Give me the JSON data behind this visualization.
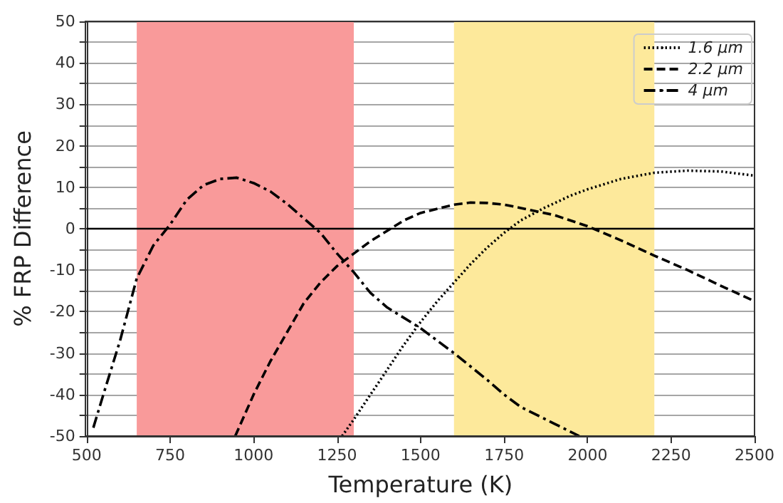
{
  "chart_data": {
    "type": "line",
    "xlabel": "Temperature (K)",
    "ylabel": "% FRP Difference",
    "xlim": [
      500,
      2500
    ],
    "xticks": [
      500,
      750,
      1000,
      1250,
      1500,
      1750,
      2000,
      2250,
      2500
    ],
    "ylim": [
      -50,
      50
    ],
    "yticks": [
      -50,
      {
        "value": -45,
        "label": null
      },
      -40,
      {
        "value": -35,
        "label": null
      },
      -30,
      {
        "value": -25,
        "label": null
      },
      -20,
      {
        "value": -15,
        "label": null
      },
      -10,
      {
        "value": -5,
        "label": null
      },
      0,
      {
        "value": 5,
        "label": null
      },
      10,
      {
        "value": 15,
        "label": null
      },
      20,
      {
        "value": 25,
        "label": null
      },
      30,
      {
        "value": 35,
        "label": null
      },
      40,
      {
        "value": 45,
        "label": null
      },
      50
    ],
    "grid": "y",
    "legend": "top right",
    "marker": "none",
    "bands": [
      {
        "axis": "x",
        "from": 650,
        "to": 1300,
        "color": "#f99a9a"
      },
      {
        "axis": "x",
        "from": 1600,
        "to": 2200,
        "color": "#fde99b"
      }
    ],
    "ref_lines": [
      {
        "axis": "y",
        "value": 0,
        "color": "#000000"
      }
    ],
    "series": [
      {
        "name": "1.6 µm",
        "color": "#000000",
        "line_style": "dotted",
        "x": [
          1265,
          1300,
          1350,
          1400,
          1450,
          1500,
          1550,
          1600,
          1650,
          1700,
          1750,
          1800,
          1870,
          1950,
          2000,
          2100,
          2200,
          2300,
          2400,
          2500
        ],
        "values": [
          -50,
          -46,
          -40,
          -34,
          -28,
          -22.5,
          -17.5,
          -13,
          -8.5,
          -4.5,
          -1,
          2,
          5,
          8,
          9.5,
          12,
          13.5,
          14,
          13.8,
          12.8
        ]
      },
      {
        "name": "2.2 µm",
        "color": "#000000",
        "line_style": "dashed",
        "x": [
          945,
          1000,
          1050,
          1100,
          1150,
          1200,
          1250,
          1300,
          1350,
          1400,
          1450,
          1500,
          1600,
          1650,
          1700,
          1750,
          1800,
          1900,
          2000,
          2100,
          2200,
          2300,
          2400,
          2500
        ],
        "values": [
          -50,
          -40,
          -32,
          -25,
          -18,
          -13,
          -9,
          -6,
          -3,
          -0.5,
          2,
          3.8,
          5.8,
          6.3,
          6.2,
          5.8,
          5,
          3.3,
          0.6,
          -2.8,
          -6.5,
          -10,
          -13.8,
          -17.5
        ]
      },
      {
        "name": "4 µm",
        "color": "#000000",
        "line_style": "dashdot",
        "x": [
          520,
          550,
          600,
          650,
          700,
          750,
          800,
          850,
          900,
          950,
          1000,
          1050,
          1100,
          1150,
          1200,
          1250,
          1300,
          1350,
          1400,
          1500,
          1600,
          1700,
          1750,
          1800,
          1900,
          1975
        ],
        "values": [
          -48,
          -40,
          -27,
          -12,
          -4,
          1,
          7,
          10.5,
          12,
          12.3,
          11,
          9,
          6,
          2.5,
          -1,
          -6,
          -10.5,
          -15.5,
          -19,
          -24,
          -30,
          -36.5,
          -40,
          -43,
          -47,
          -50
        ]
      }
    ]
  }
}
